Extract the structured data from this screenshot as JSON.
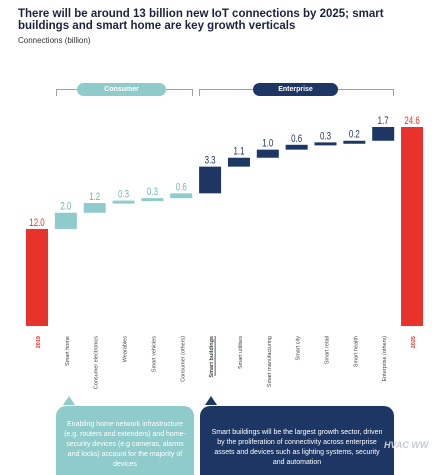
{
  "header": {
    "title": "There will be around 13 billion new IoT connections by 2025; smart buildings and smart home are key growth verticals",
    "subtitle": "Connections (billion)"
  },
  "legend": {
    "consumer_label": "Consumer",
    "enterprise_label": "Enterprise"
  },
  "callouts": {
    "consumer": "Enabling home network infrastructure (e.g. routers and extenders) and home-security devices (e.g cameras, alarms and locks) account for the majority of devices",
    "enterprise": "Smart buildings will be the largest growth sector, driven by the proliferation of connectivity across enterprise assets and devices such as lighting systems, security and automation"
  },
  "watermark": "HVAC WW",
  "colors": {
    "total": "#e8322c",
    "consumer": "#8fcbca",
    "enterprise": "#1d3664"
  },
  "chart_data": {
    "type": "bar",
    "subtype": "waterfall",
    "ylabel": "Connections (billion)",
    "categories": [
      "2019",
      "Smart home",
      "Consumer electronics",
      "Wearables",
      "Smart vehicles",
      "Consumer (others)",
      "Smart buildings",
      "Smart utilities",
      "Smart manufacturing",
      "Smart city",
      "Smart retail",
      "Smart health",
      "Enterprise (others)",
      "2025"
    ],
    "values": [
      12.0,
      2.0,
      1.2,
      0.3,
      0.3,
      0.6,
      3.3,
      1.1,
      1.0,
      0.6,
      0.3,
      0.2,
      1.7,
      24.6
    ],
    "labels": [
      "12.0",
      "2.0",
      "1.2",
      "0.3",
      "0.3",
      "0.6",
      "3.3",
      "1.1",
      "1.0",
      "0.6",
      "0.3",
      "0.2",
      "1.7",
      "24.6"
    ],
    "kinds": [
      "total",
      "consumer",
      "consumer",
      "consumer",
      "consumer",
      "consumer",
      "enterprise",
      "enterprise",
      "enterprise",
      "enterprise",
      "enterprise",
      "enterprise",
      "enterprise",
      "total"
    ],
    "ylim": [
      0,
      24.6
    ],
    "grid": false
  }
}
